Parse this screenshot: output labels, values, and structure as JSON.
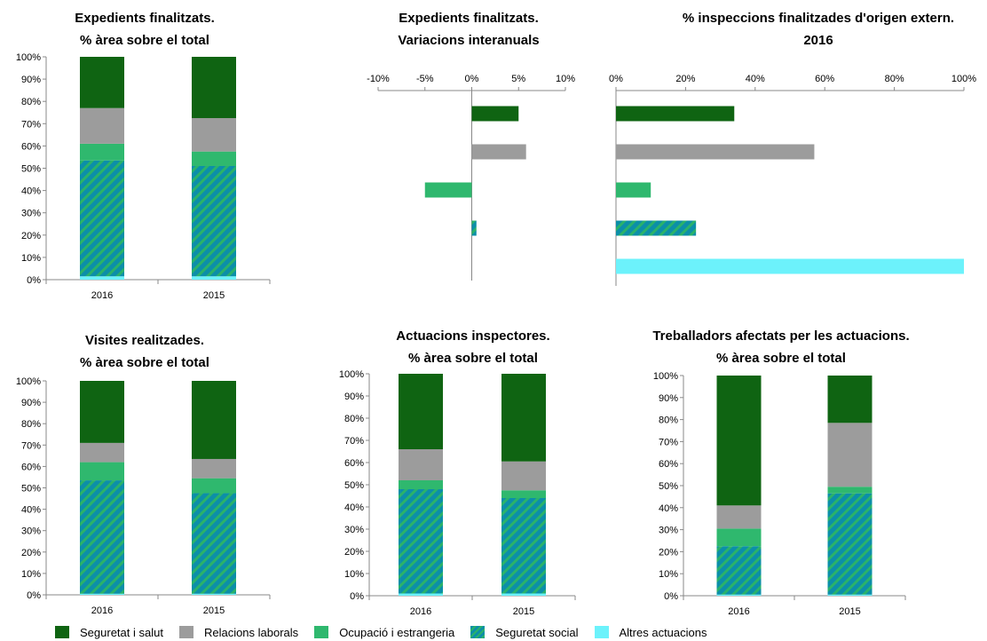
{
  "categories_legend": [
    {
      "name": "Seguretat i salut",
      "color": "#0f6412",
      "hatch": false
    },
    {
      "name": "Relacions laborals",
      "color": "#9c9c9c",
      "hatch": false
    },
    {
      "name": "Ocupació i estrangeria",
      "color": "#2fb86e",
      "hatch": false
    },
    {
      "name": "Seguretat  social",
      "color": "#0c8fa8",
      "hatch": true
    },
    {
      "name": "Altres actuacions",
      "color": "#6cf2fb",
      "hatch": false
    }
  ],
  "chart_data": [
    {
      "id": "expedients-stacked",
      "type": "bar",
      "stacked": true,
      "title_lines": [
        "Expedients finalitzats.",
        "% àrea sobre el total"
      ],
      "categories": [
        "2016",
        "2015"
      ],
      "ylim": [
        0,
        100
      ],
      "yticks": [
        "0%",
        "10%",
        "20%",
        "30%",
        "40%",
        "50%",
        "60%",
        "70%",
        "80%",
        "90%",
        "100%"
      ],
      "series": [
        {
          "name": "Altres actuacions",
          "values": [
            1.5,
            1.5
          ]
        },
        {
          "name": "Seguretat  social",
          "values": [
            52,
            49.5
          ]
        },
        {
          "name": "Ocupació i estrangeria",
          "values": [
            7.5,
            6.5
          ]
        },
        {
          "name": "Relacions laborals",
          "values": [
            16,
            15
          ]
        },
        {
          "name": "Seguretat i salut",
          "values": [
            23,
            27.5
          ]
        }
      ]
    },
    {
      "id": "variacions-interanuals",
      "type": "bar",
      "orientation": "horizontal",
      "title_lines": [
        "Expedients finalitzats.",
        "Variacions interanuals"
      ],
      "categories": [
        "Seguretat i salut",
        "Relacions laborals",
        "Ocupació i estrangeria",
        "Seguretat  social"
      ],
      "values": [
        5.0,
        5.8,
        -5.0,
        0.5
      ],
      "xlim": [
        -10,
        10
      ],
      "xticks": [
        "-10%",
        "-5%",
        "0%",
        "5%",
        "10%"
      ]
    },
    {
      "id": "inspeccions-origen-extern",
      "type": "bar",
      "orientation": "horizontal",
      "title_lines": [
        "% inspeccions finalitzades d'origen extern.",
        "2016"
      ],
      "categories": [
        "Seguretat i salut",
        "Relacions laborals",
        "Ocupació i estrangeria",
        "Seguretat  social",
        "Altres actuacions"
      ],
      "values": [
        34,
        57,
        10,
        23,
        100
      ],
      "xlim": [
        0,
        100
      ],
      "xticks": [
        "0%",
        "20%",
        "40%",
        "60%",
        "80%",
        "100%"
      ]
    },
    {
      "id": "visites-stacked",
      "type": "bar",
      "stacked": true,
      "title_lines": [
        "Visites realitzades.",
        "% àrea sobre el total"
      ],
      "categories": [
        "2016",
        "2015"
      ],
      "ylim": [
        0,
        100
      ],
      "yticks": [
        "0%",
        "10%",
        "20%",
        "30%",
        "40%",
        "50%",
        "60%",
        "70%",
        "80%",
        "90%",
        "100%"
      ],
      "series": [
        {
          "name": "Altres actuacions",
          "values": [
            0.5,
            0.5
          ]
        },
        {
          "name": "Seguretat  social",
          "values": [
            53,
            47
          ]
        },
        {
          "name": "Ocupació i estrangeria",
          "values": [
            8.5,
            7
          ]
        },
        {
          "name": "Relacions laborals",
          "values": [
            9,
            9
          ]
        },
        {
          "name": "Seguretat i salut",
          "values": [
            29,
            36.5
          ]
        }
      ]
    },
    {
      "id": "actuacions-stacked",
      "type": "bar",
      "stacked": true,
      "title_lines": [
        "Actuacions inspectores.",
        "% àrea sobre el total"
      ],
      "categories": [
        "2016",
        "2015"
      ],
      "ylim": [
        0,
        100
      ],
      "yticks": [
        "0%",
        "10%",
        "20%",
        "30%",
        "40%",
        "50%",
        "60%",
        "70%",
        "80%",
        "90%",
        "100%"
      ],
      "series": [
        {
          "name": "Altres actuacions",
          "values": [
            1,
            1
          ]
        },
        {
          "name": "Seguretat  social",
          "values": [
            47,
            43
          ]
        },
        {
          "name": "Ocupació i estrangeria",
          "values": [
            4,
            3.5
          ]
        },
        {
          "name": "Relacions laborals",
          "values": [
            14,
            13
          ]
        },
        {
          "name": "Seguretat i salut",
          "values": [
            34,
            39.5
          ]
        }
      ]
    },
    {
      "id": "treballadors-stacked",
      "type": "bar",
      "stacked": true,
      "title_lines": [
        "Treballadors afectats per les actuacions.",
        "% àrea sobre el total"
      ],
      "categories": [
        "2016",
        "2015"
      ],
      "ylim": [
        0,
        100
      ],
      "yticks": [
        "0%",
        "10%",
        "20%",
        "30%",
        "40%",
        "50%",
        "60%",
        "70%",
        "80%",
        "90%",
        "100%"
      ],
      "series": [
        {
          "name": "Altres actuacions",
          "values": [
            0.5,
            0.5
          ]
        },
        {
          "name": "Seguretat  social",
          "values": [
            22,
            46
          ]
        },
        {
          "name": "Ocupació i estrangeria",
          "values": [
            8,
            3
          ]
        },
        {
          "name": "Relacions laborals",
          "values": [
            10.5,
            29
          ]
        },
        {
          "name": "Seguretat i salut",
          "values": [
            59,
            21.5
          ]
        }
      ]
    }
  ]
}
